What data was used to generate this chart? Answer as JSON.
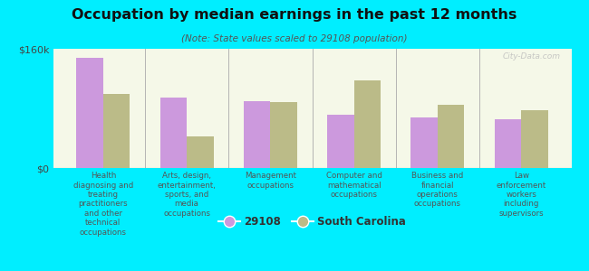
{
  "title": "Occupation by median earnings in the past 12 months",
  "subtitle": "(Note: State values scaled to 29108 population)",
  "background_color": "#00eeff",
  "plot_bg_top": "#e8edcc",
  "plot_bg_bottom": "#f5f8e8",
  "bar_color_29108": "#cc99dd",
  "bar_color_sc": "#bbbb88",
  "categories": [
    "Health\ndiagnosing and\ntreating\npractitioners\nand other\ntechnical\noccupations",
    "Arts, design,\nentertainment,\nsports, and\nmedia\noccupations",
    "Management\noccupations",
    "Computer and\nmathematical\noccupations",
    "Business and\nfinancial\noperations\noccupations",
    "Law\nenforcement\nworkers\nincluding\nsupervisors"
  ],
  "values_29108": [
    148000,
    95000,
    90000,
    72000,
    68000,
    65000
  ],
  "values_sc": [
    100000,
    42000,
    88000,
    118000,
    85000,
    78000
  ],
  "ylim": [
    0,
    160000
  ],
  "yticks": [
    0,
    160000
  ],
  "ytick_labels": [
    "$0",
    "$160k"
  ],
  "legend_label_29108": "29108",
  "legend_label_sc": "South Carolina",
  "watermark": "City-Data.com"
}
